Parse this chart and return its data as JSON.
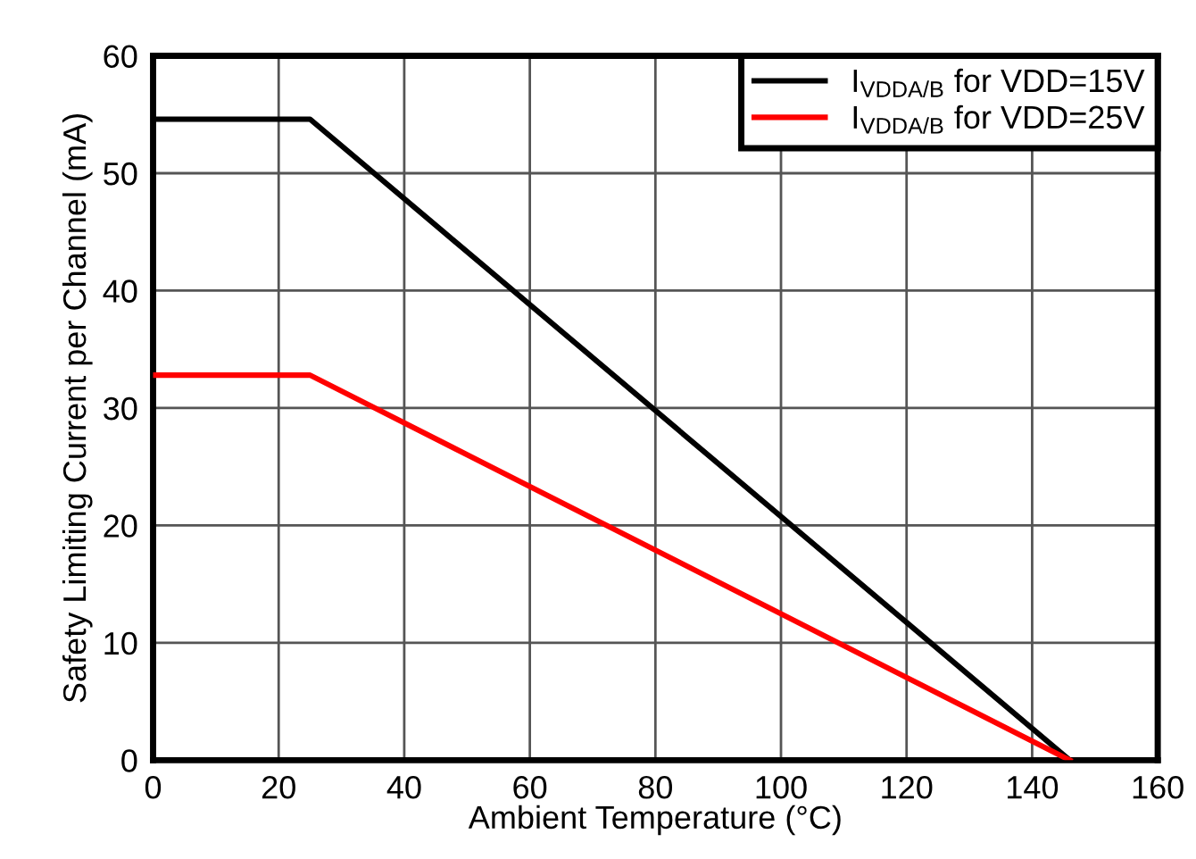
{
  "chart_data": {
    "type": "line",
    "xlabel": "Ambient Temperature (°C)",
    "ylabel": "Safety Limiting Current per Channel (mA)",
    "series": [
      {
        "name": "I$_{VDDA/B}$ for VDD=15V",
        "color": "#000000",
        "x": [
          0,
          25,
          146
        ],
        "values": [
          54.6,
          54.6,
          0
        ]
      },
      {
        "name": "I$_{VDDA/B}$ for VDD=25V",
        "color": "#ff0000",
        "x": [
          0,
          25,
          146
        ],
        "values": [
          32.8,
          32.8,
          0
        ]
      }
    ],
    "xlim": [
      0,
      160
    ],
    "xticks": [
      0,
      20,
      40,
      60,
      80,
      100,
      120,
      140,
      160
    ],
    "ylim": [
      0,
      60
    ],
    "yticks": [
      0,
      10,
      20,
      30,
      40,
      50,
      60
    ],
    "grid": true,
    "legend": "top right",
    "line_style": "solid",
    "marker": "none"
  }
}
